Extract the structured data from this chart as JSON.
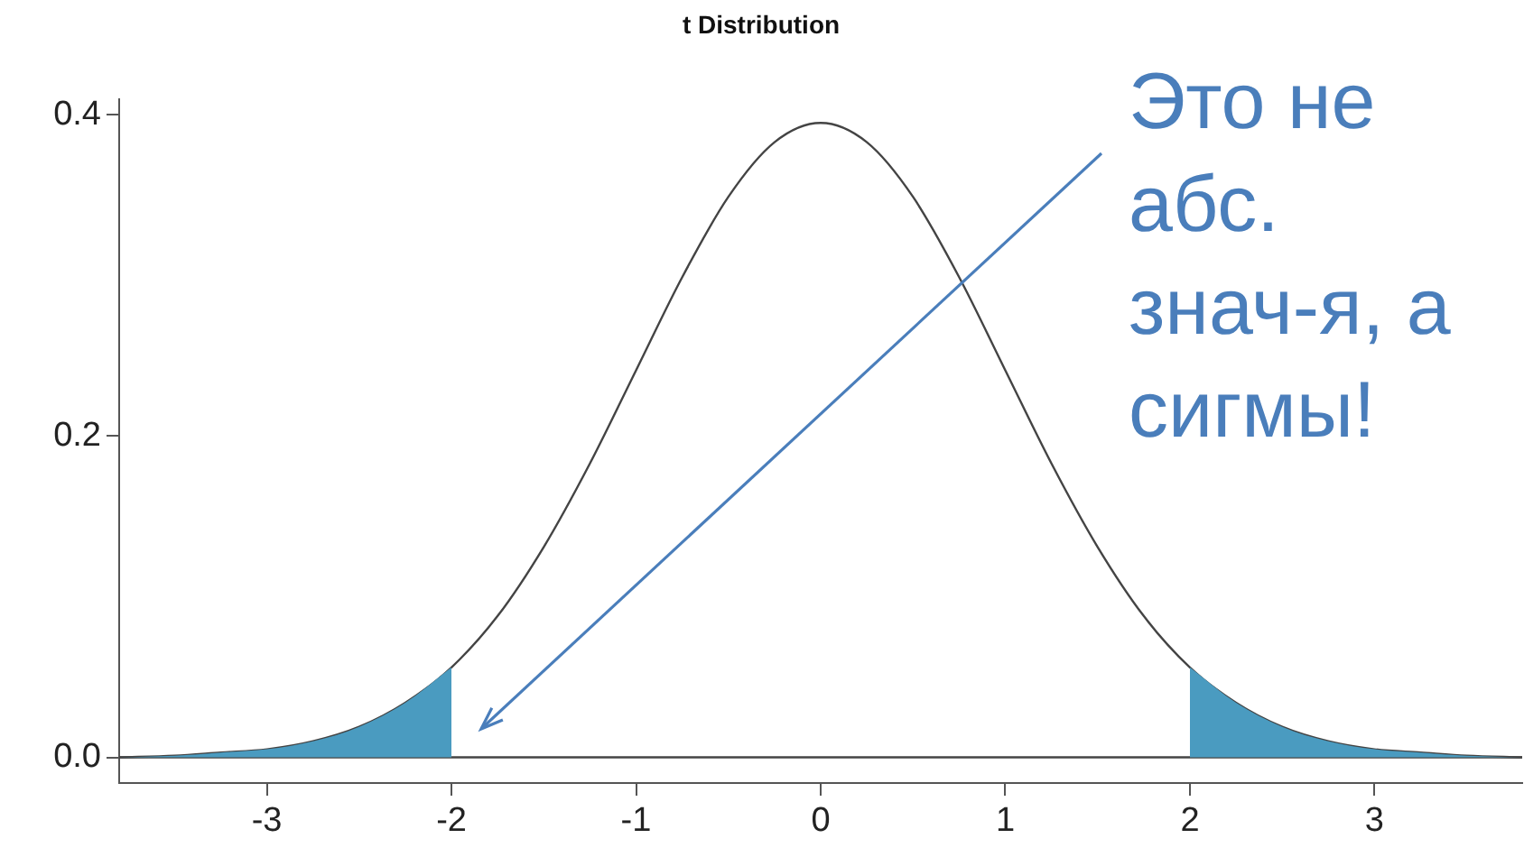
{
  "chart_data": {
    "type": "line",
    "title": "t Distribution",
    "xlim": [
      -3.8,
      3.8
    ],
    "xticks": [
      -3,
      -2,
      -1,
      0,
      1,
      2,
      3
    ],
    "ylim": [
      -0.016,
      0.41
    ],
    "yticks": [
      {
        "value": 0,
        "label": "0.0"
      },
      {
        "value": 0.2,
        "label": "0.2"
      },
      {
        "value": 0.4,
        "label": "0.4"
      }
    ],
    "grid": false,
    "legend": false,
    "marker": "none",
    "line_style": "solid",
    "series": [
      {
        "type": "area",
        "color": "#4a9bc0",
        "x": [
          -3.8,
          -3.5,
          -3.25,
          -3,
          -2.75,
          -2.5,
          -2.25,
          -2
        ],
        "values": [
          0.0,
          0.001,
          0.003,
          0.005,
          0.01,
          0.019,
          0.034,
          0.056
        ]
      },
      {
        "type": "area",
        "color": "#4a9bc0",
        "x": [
          2,
          2.25,
          2.5,
          2.75,
          3,
          3.25,
          3.5,
          3.8
        ],
        "values": [
          0.056,
          0.034,
          0.019,
          0.01,
          0.005,
          0.003,
          0.001,
          0.0
        ]
      },
      {
        "type": "line",
        "color": "#444444",
        "x": [
          -3.8,
          -3.5,
          -3.25,
          -3,
          -2.75,
          -2.5,
          -2.25,
          -2,
          -1.75,
          -1.5,
          -1.25,
          -1,
          -0.75,
          -0.5,
          -0.25,
          0,
          0.25,
          0.5,
          0.75,
          1,
          1.25,
          1.5,
          1.75,
          2,
          2.25,
          2.5,
          2.75,
          3,
          3.25,
          3.5,
          3.8
        ],
        "values": [
          0.0,
          0.001,
          0.003,
          0.005,
          0.01,
          0.019,
          0.034,
          0.056,
          0.088,
          0.131,
          0.183,
          0.241,
          0.299,
          0.349,
          0.383,
          0.395,
          0.383,
          0.349,
          0.299,
          0.241,
          0.183,
          0.131,
          0.088,
          0.056,
          0.034,
          0.019,
          0.01,
          0.005,
          0.003,
          0.001,
          0.0
        ]
      }
    ],
    "ref_lines": [
      {
        "axis": "y",
        "value": 0,
        "color": "#444444"
      }
    ],
    "annotations": [
      "Это не\nабс.\nзнач-я, а\nсигмы!"
    ]
  }
}
